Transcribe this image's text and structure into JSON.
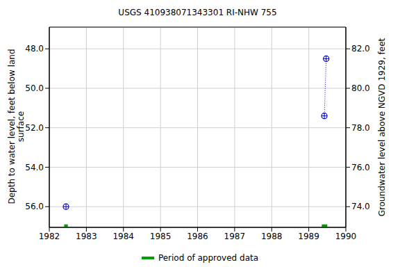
{
  "chart_data": {
    "type": "scatter",
    "title": "USGS 410938071343301 RI-NHW  755",
    "x_label": "",
    "y_label": [
      "Depth to water level, feet below land",
      "surface"
    ],
    "y2_label": "Groundwater level above NGVD 1929, feet",
    "xlim": [
      1982,
      1990
    ],
    "xticks": [
      1982,
      1983,
      1984,
      1985,
      1986,
      1987,
      1988,
      1989,
      1990
    ],
    "ylim": [
      46.9,
      57.05
    ],
    "yticks": [
      {
        "value": 48,
        "label": "48.0"
      },
      {
        "value": 50,
        "label": "50.0"
      },
      {
        "value": 52,
        "label": "52.0"
      },
      {
        "value": 54,
        "label": "54.0"
      },
      {
        "value": 56,
        "label": "56.0"
      }
    ],
    "y2lim": [
      72.95,
      83.1
    ],
    "y2ticks": [
      {
        "value": 74,
        "label": "74.0"
      },
      {
        "value": 76,
        "label": "76.0"
      },
      {
        "value": 78,
        "label": "78.0"
      },
      {
        "value": 80,
        "label": "80.0"
      },
      {
        "value": 82,
        "label": "82.0"
      }
    ],
    "grid": true,
    "series": [
      {
        "color": "#0000cc",
        "marker": "circle",
        "x": [
          1982.45
        ],
        "values": [
          56.0
        ]
      },
      {
        "color": "#0000cc",
        "marker": "circle",
        "line_style": "dotted",
        "x": [
          1989.42,
          1989.47
        ],
        "values": [
          51.4,
          48.5
        ]
      }
    ],
    "approved_periods": {
      "name": "Period of approved data",
      "color": "#00a000",
      "ranges": [
        [
          1982.4,
          1982.5
        ],
        [
          1989.35,
          1989.5
        ]
      ]
    }
  }
}
